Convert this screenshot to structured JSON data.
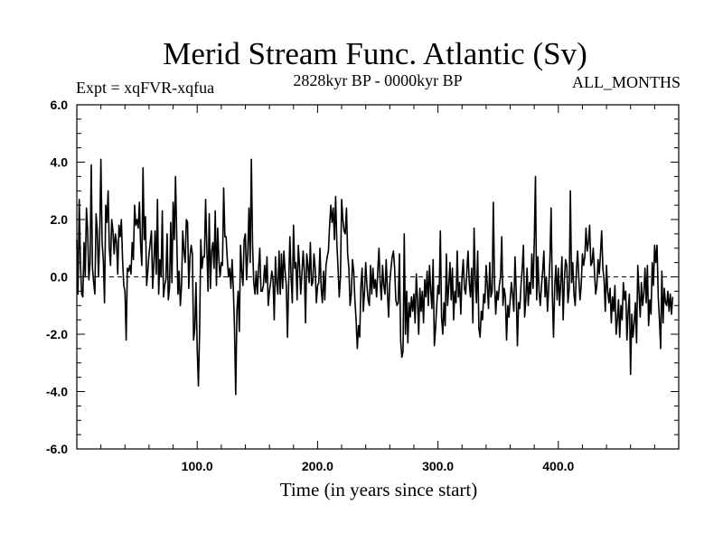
{
  "chart_data": {
    "type": "line",
    "title": "Merid Stream Func. Atlantic (Sv)",
    "subtitle_left": "Expt = xqFVR-xqfua",
    "subtitle_center": "2828kyr BP - 0000kyr BP",
    "subtitle_right": "ALL_MONTHS",
    "xlabel": "Time (in years since start)",
    "ylabel": "",
    "xlim": [
      0,
      500
    ],
    "ylim": [
      -6,
      6
    ],
    "x_ticks": [
      100,
      200,
      300,
      400
    ],
    "x_tick_labels": [
      "100.0",
      "200.0",
      "300.0",
      "400.0"
    ],
    "y_ticks": [
      -6,
      -4,
      -2,
      0,
      2,
      4,
      6
    ],
    "y_tick_labels": [
      "-6.0",
      "-4.0",
      "-2.0",
      "0.0",
      "2.0",
      "4.0",
      "6.0"
    ],
    "reference_line": 0,
    "series": [
      {
        "name": "xqFVR-xqfua",
        "x_start": 0,
        "x_step": 1,
        "values": [
          1.3,
          -0.6,
          2.7,
          0.5,
          -0.6,
          -0.7,
          1.2,
          0.0,
          2.4,
          1.6,
          -0.1,
          0.5,
          3.9,
          0.3,
          -0.2,
          -0.6,
          2.2,
          1.6,
          0.0,
          1.4,
          4.1,
          1.2,
          0.6,
          -0.9,
          2.5,
          1.9,
          3.0,
          1.0,
          0.4,
          2.0,
          1.6,
          0.8,
          1.5,
          1.2,
          0.1,
          1.8,
          1.4,
          2.0,
          0.6,
          -0.3,
          -0.5,
          -2.2,
          0.3,
          0.2,
          0.4,
          0.1,
          1.2,
          0.6,
          2.5,
          1.8,
          2.0,
          1.7,
          2.6,
          1.1,
          0.4,
          3.8,
          1.3,
          2.1,
          -0.3,
          0.2,
          0.8,
          1.2,
          1.6,
          -0.4,
          0.5,
          1.6,
          0.1,
          2.7,
          -0.6,
          0.6,
          0.0,
          2.3,
          -0.7,
          -0.3,
          -0.1,
          1.5,
          -0.8,
          -0.4,
          1.9,
          -0.2,
          2.6,
          1.3,
          3.5,
          1.4,
          -0.6,
          0.2,
          -1.0,
          -0.3,
          1.6,
          0.9,
          0.5,
          2.0,
          1.9,
          -0.4,
          0.7,
          1.1,
          0.8,
          -2.2,
          -1.8,
          -0.2,
          -2.5,
          -3.8,
          -1.9,
          1.3,
          0.3,
          0.7,
          0.7,
          2.7,
          1.0,
          -0.5,
          2.2,
          -0.4,
          0.9,
          1.2,
          0.3,
          2.3,
          -0.3,
          1.7,
          0.6,
          0.0,
          0.5,
          0.4,
          3.1,
          1.4,
          1.4,
          0.6,
          0.0,
          0.3,
          -0.4,
          0.6,
          -0.4,
          -1.8,
          -4.1,
          -1.2,
          -0.5,
          -1.9,
          1.1,
          0.2,
          -0.3,
          1.3,
          1.5,
          -0.1,
          0.8,
          2.4,
          0.5,
          4.1,
          1.1,
          -0.2,
          -0.6,
          0.2,
          -0.6,
          0.3,
          1.0,
          -0.5,
          -0.5,
          -0.3,
          0.4,
          -0.2,
          0.7,
          -1.0,
          -0.5,
          -0.2,
          0.2,
          -0.1,
          -1.5,
          0.7,
          -0.2,
          -0.6,
          0.9,
          -0.6,
          0.8,
          -0.4,
          0.9,
          0.2,
          -0.3,
          -2.1,
          -0.2,
          1.4,
          0.0,
          -0.9,
          1.8,
          0.3,
          0.5,
          -0.8,
          1.1,
          0.4,
          -0.6,
          0.1,
          0.9,
          0.2,
          -1.6,
          0.8,
          0.4,
          -0.2,
          1.2,
          -0.3,
          -0.2,
          0.8,
          0.3,
          -0.9,
          -0.3,
          -0.2,
          1.0,
          -0.4,
          -0.9,
          0.2,
          -0.8,
          0.4,
          0.7,
          0.9,
          1.8,
          2.5,
          1.9,
          2.4,
          1.3,
          2.8,
          1.2,
          0.3,
          -0.7,
          0.0,
          2.7,
          2.0,
          1.6,
          1.5,
          2.4,
          0.8,
          0.3,
          -1.0,
          -0.6,
          0.6,
          0.2,
          -0.8,
          -1.5,
          -2.5,
          -1.7,
          -2.1,
          -0.3,
          0.3,
          -1.2,
          -0.5,
          0.5,
          -0.3,
          -0.8,
          -1.0,
          0.4,
          -0.6,
          0.3,
          -0.4,
          -0.1,
          -0.7,
          0.2,
          1.0,
          -0.2,
          -0.8,
          0.4,
          -0.3,
          -0.6,
          0.6,
          -0.5,
          -1.4,
          -0.2,
          0.3,
          0.7,
          0.9,
          0.3,
          -0.8,
          -1.0,
          -0.9,
          0.8,
          -2.2,
          -2.8,
          -2.6,
          1.5,
          -2.0,
          -0.5,
          -2.3,
          -0.9,
          -1.4,
          -0.7,
          -1.2,
          -0.6,
          -1.6,
          0.1,
          -0.8,
          -2.0,
          -0.4,
          -1.2,
          -0.5,
          -1.6,
          -0.1,
          -0.7,
          0.2,
          -1.0,
          0.4,
          -0.5,
          -1.1,
          0.6,
          -2.4,
          -1.8,
          -1.0,
          -0.3,
          -0.6,
          1.6,
          -1.4,
          -2.0,
          -0.9,
          -1.7,
          0.8,
          -1.0,
          -0.3,
          0.5,
          -0.8,
          0.3,
          -1.5,
          -0.5,
          -0.9,
          0.9,
          -0.7,
          -0.2,
          -1.3,
          0.0,
          0.6,
          -0.4,
          -0.6,
          0.2,
          0.9,
          -0.2,
          -0.7,
          0.3,
          -1.6,
          1.7,
          -0.1,
          -0.9,
          0.9,
          -1.8,
          -2.1,
          -1.2,
          -1.5,
          -0.6,
          -0.9,
          0.4,
          -0.3,
          -1.1,
          0.5,
          -0.7,
          -0.5,
          2.6,
          -0.2,
          -1.3,
          -0.5,
          -0.8,
          -0.3,
          0.0,
          1.4,
          -1.0,
          -0.4,
          -0.7,
          -2.2,
          -1.0,
          -1.4,
          -0.8,
          -0.2,
          -0.6,
          -1.2,
          0.7,
          -0.5,
          -2.4,
          -0.9,
          -1.1,
          -0.3,
          0.3,
          1.1,
          -1.4,
          -0.8,
          0.3,
          -1.0,
          -0.2,
          -0.6,
          0.8,
          -0.4,
          1.2,
          3.5,
          -0.8,
          0.7,
          -0.5,
          -1.0,
          -0.3,
          0.2,
          0.9,
          -0.7,
          0.0,
          -1.2,
          -0.4,
          0.6,
          2.4,
          -0.6,
          -2.1,
          -0.3,
          0.4,
          -0.8,
          0.3,
          -1.0,
          -0.2,
          0.7,
          -1.5,
          -0.1,
          0.6,
          0.4,
          -0.9,
          -0.4,
          3.0,
          -0.2,
          0.5,
          -0.6,
          -1.0,
          0.2,
          0.9,
          0.0,
          -0.8,
          -0.3,
          0.8,
          0.4,
          0.7,
          1.7,
          0.9,
          1.2,
          1.8,
          0.4,
          0.5,
          1.0,
          0.2,
          -0.6,
          -0.3,
          0.6,
          0.1,
          0.8,
          1.6,
          0.3,
          -0.1,
          -1.2,
          0.4,
          -0.5,
          -0.9,
          -0.4,
          -1.6,
          -0.7,
          -1.2,
          -0.3,
          -2.0,
          -1.5,
          -0.8,
          -2.1,
          -1.0,
          -1.5,
          -0.2,
          -0.8,
          -0.5,
          -2.2,
          -1.2,
          -0.6,
          -3.4,
          -1.3,
          -2.1,
          -1.6,
          -0.9,
          -2.3,
          0.4,
          -0.5,
          -1.4,
          -0.2,
          -1.0,
          -0.6,
          0.3,
          -0.9,
          0.4,
          -1.7,
          -0.8,
          -1.3,
          0.5,
          -0.3,
          1.1,
          0.5,
          1.1,
          -0.7,
          -1.5,
          -2.5,
          0.2,
          -1.6,
          -0.4,
          -0.9,
          -1.0,
          -0.5,
          -1.2,
          -0.6,
          -1.3,
          -0.7
        ]
      }
    ]
  }
}
